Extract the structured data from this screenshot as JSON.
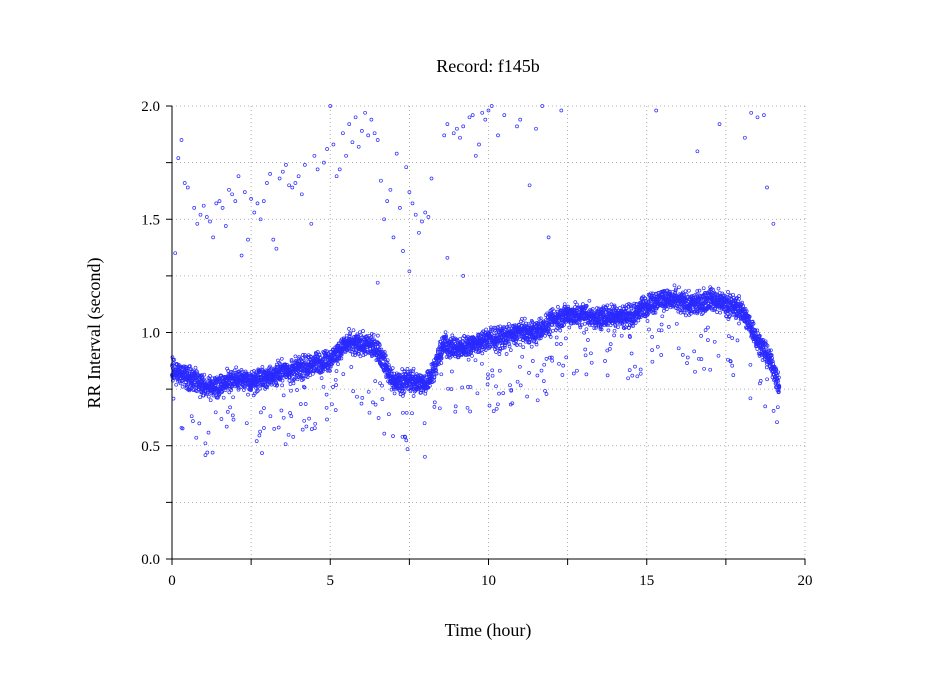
{
  "chart_data": {
    "type": "scatter",
    "title": "Record:  f145b",
    "xlabel": "Time (hour)",
    "ylabel": "RR Interval (second)",
    "xlim": [
      0,
      20
    ],
    "ylim": [
      0,
      2
    ],
    "xticks": [
      0,
      5,
      10,
      15,
      20
    ],
    "yticks": [
      0,
      0.5,
      1,
      1.5,
      2
    ],
    "xtick_labels": [
      "0",
      "5",
      "10",
      "15",
      "20"
    ],
    "ytick_labels": [
      "0.0",
      "0.5",
      "1.0",
      "1.5",
      "2.0"
    ],
    "grid": true,
    "legend": "none",
    "marker": "open-circle",
    "color": "#2a2aff",
    "trend": [
      [
        0,
        0.83
      ],
      [
        0.5,
        0.8
      ],
      [
        1,
        0.76
      ],
      [
        1.5,
        0.77
      ],
      [
        2,
        0.8
      ],
      [
        2.5,
        0.78
      ],
      [
        3,
        0.8
      ],
      [
        3.5,
        0.83
      ],
      [
        4,
        0.84
      ],
      [
        4.5,
        0.86
      ],
      [
        5,
        0.88
      ],
      [
        5.5,
        0.95
      ],
      [
        6,
        0.95
      ],
      [
        6.5,
        0.93
      ],
      [
        7,
        0.78
      ],
      [
        7.5,
        0.79
      ],
      [
        8,
        0.77
      ],
      [
        8.3,
        0.85
      ],
      [
        8.6,
        0.95
      ],
      [
        9,
        0.93
      ],
      [
        9.5,
        0.95
      ],
      [
        10,
        0.97
      ],
      [
        10.5,
        0.98
      ],
      [
        11,
        1.0
      ],
      [
        11.5,
        1.0
      ],
      [
        12,
        1.05
      ],
      [
        12.5,
        1.08
      ],
      [
        13,
        1.08
      ],
      [
        13.5,
        1.06
      ],
      [
        14,
        1.08
      ],
      [
        14.5,
        1.07
      ],
      [
        15,
        1.12
      ],
      [
        15.5,
        1.15
      ],
      [
        16,
        1.14
      ],
      [
        16.5,
        1.12
      ],
      [
        17,
        1.15
      ],
      [
        17.5,
        1.13
      ],
      [
        18,
        1.1
      ],
      [
        18.5,
        0.97
      ],
      [
        19,
        0.85
      ],
      [
        19.2,
        0.75
      ]
    ],
    "outliers": [
      [
        0.1,
        1.35
      ],
      [
        0.2,
        1.77
      ],
      [
        0.3,
        1.85
      ],
      [
        0.4,
        1.66
      ],
      [
        0.5,
        1.64
      ],
      [
        0.7,
        1.55
      ],
      [
        0.8,
        1.48
      ],
      [
        0.9,
        1.52
      ],
      [
        1.0,
        1.56
      ],
      [
        1.1,
        1.51
      ],
      [
        1.2,
        1.49
      ],
      [
        1.3,
        1.42
      ],
      [
        1.4,
        1.57
      ],
      [
        1.5,
        1.58
      ],
      [
        1.6,
        1.55
      ],
      [
        1.7,
        1.47
      ],
      [
        1.8,
        1.63
      ],
      [
        1.9,
        1.61
      ],
      [
        2.0,
        1.58
      ],
      [
        2.1,
        1.69
      ],
      [
        2.2,
        1.34
      ],
      [
        2.3,
        1.62
      ],
      [
        2.4,
        1.41
      ],
      [
        2.5,
        1.59
      ],
      [
        2.6,
        1.53
      ],
      [
        2.7,
        1.57
      ],
      [
        2.8,
        1.5
      ],
      [
        2.9,
        1.58
      ],
      [
        3.0,
        1.66
      ],
      [
        3.1,
        1.7
      ],
      [
        3.2,
        1.41
      ],
      [
        3.3,
        1.37
      ],
      [
        3.4,
        1.68
      ],
      [
        3.5,
        1.71
      ],
      [
        3.6,
        1.74
      ],
      [
        3.7,
        1.65
      ],
      [
        3.8,
        1.64
      ],
      [
        3.9,
        1.66
      ],
      [
        4.0,
        1.69
      ],
      [
        4.1,
        1.61
      ],
      [
        4.2,
        1.74
      ],
      [
        4.4,
        1.48
      ],
      [
        4.5,
        1.78
      ],
      [
        4.6,
        1.72
      ],
      [
        4.8,
        1.75
      ],
      [
        4.9,
        1.81
      ],
      [
        5.0,
        2.0
      ],
      [
        5.1,
        1.83
      ],
      [
        5.2,
        1.69
      ],
      [
        5.3,
        1.72
      ],
      [
        5.4,
        1.88
      ],
      [
        5.5,
        1.78
      ],
      [
        5.6,
        1.92
      ],
      [
        5.7,
        1.84
      ],
      [
        5.8,
        1.95
      ],
      [
        5.9,
        1.82
      ],
      [
        6.0,
        1.89
      ],
      [
        6.1,
        1.97
      ],
      [
        6.2,
        1.87
      ],
      [
        6.3,
        1.94
      ],
      [
        6.4,
        1.88
      ],
      [
        6.5,
        1.85
      ],
      [
        6.6,
        1.67
      ],
      [
        6.7,
        1.5
      ],
      [
        6.8,
        1.58
      ],
      [
        6.9,
        1.63
      ],
      [
        7.0,
        1.42
      ],
      [
        7.1,
        1.79
      ],
      [
        7.2,
        1.55
      ],
      [
        7.3,
        1.36
      ],
      [
        7.4,
        1.73
      ],
      [
        7.5,
        1.62
      ],
      [
        7.6,
        1.57
      ],
      [
        7.7,
        1.52
      ],
      [
        7.8,
        1.44
      ],
      [
        7.9,
        1.49
      ],
      [
        8.0,
        1.53
      ],
      [
        8.1,
        1.51
      ],
      [
        8.2,
        1.68
      ],
      [
        8.6,
        1.87
      ],
      [
        8.7,
        1.92
      ],
      [
        8.9,
        1.88
      ],
      [
        9.0,
        1.9
      ],
      [
        9.1,
        1.86
      ],
      [
        9.2,
        1.91
      ],
      [
        9.4,
        1.95
      ],
      [
        9.5,
        1.96
      ],
      [
        9.6,
        1.78
      ],
      [
        9.7,
        1.83
      ],
      [
        9.8,
        1.97
      ],
      [
        9.9,
        1.94
      ],
      [
        10.0,
        1.98
      ],
      [
        10.1,
        2.0
      ],
      [
        10.3,
        1.87
      ],
      [
        10.5,
        1.96
      ],
      [
        10.9,
        1.91
      ],
      [
        11.0,
        1.94
      ],
      [
        11.3,
        1.65
      ],
      [
        11.5,
        1.9
      ],
      [
        11.7,
        2.0
      ],
      [
        11.9,
        1.42
      ],
      [
        12.3,
        1.98
      ],
      [
        15.3,
        1.98
      ],
      [
        16.6,
        1.8
      ],
      [
        17.3,
        1.92
      ],
      [
        18.1,
        1.86
      ],
      [
        18.3,
        1.97
      ],
      [
        18.5,
        1.95
      ],
      [
        18.7,
        1.96
      ],
      [
        18.8,
        1.64
      ],
      [
        19.0,
        1.48
      ],
      [
        6.5,
        1.22
      ],
      [
        7.5,
        1.27
      ],
      [
        8.7,
        1.33
      ],
      [
        9.2,
        1.25
      ]
    ]
  }
}
